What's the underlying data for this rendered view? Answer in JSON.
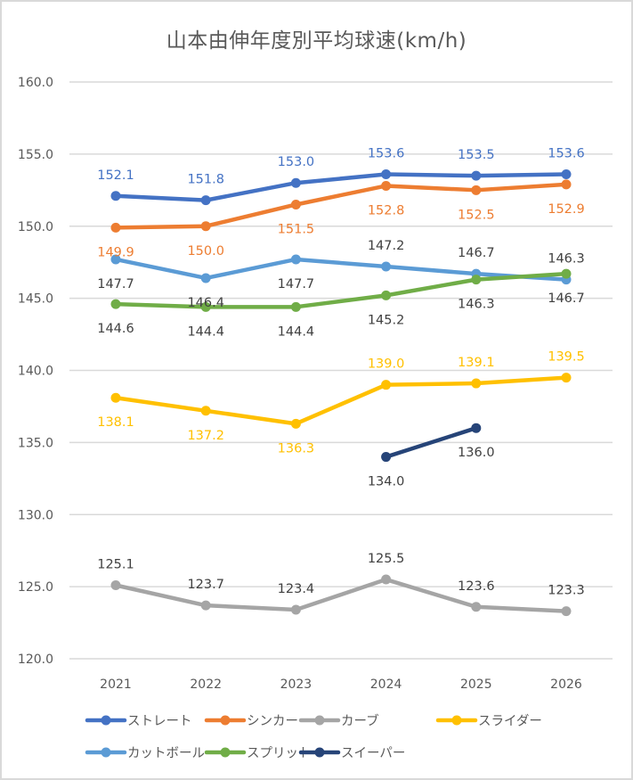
{
  "chart_data": {
    "type": "line",
    "title": "山本由伸年度別平均球速(km/h)",
    "xlabel": "",
    "ylabel": "",
    "categories": [
      "2021",
      "2022",
      "2023",
      "2024",
      "2025",
      "2026"
    ],
    "ylim": [
      120,
      160
    ],
    "yticks": [
      "120.0",
      "125.0",
      "130.0",
      "135.0",
      "140.0",
      "145.0",
      "150.0",
      "155.0",
      "160.0"
    ],
    "ytick_values": [
      120,
      125,
      130,
      135,
      140,
      145,
      150,
      155,
      160
    ],
    "grid": "horizontal",
    "legend_position": "bottom",
    "series": [
      {
        "name": "ストレート",
        "color": "#4472C4",
        "label_color": "#4472C4",
        "values": [
          152.1,
          151.8,
          153.0,
          153.6,
          153.5,
          153.6
        ],
        "labels": [
          "152.1",
          "151.8",
          "153.0",
          "153.6",
          "153.5",
          "153.6"
        ],
        "label_pos": [
          "above",
          "above",
          "above",
          "above",
          "above",
          "above"
        ]
      },
      {
        "name": "シンカー",
        "color": "#ED7D31",
        "label_color": "#ED7D31",
        "values": [
          149.9,
          150.0,
          151.5,
          152.8,
          152.5,
          152.9
        ],
        "labels": [
          "149.9",
          "150.0",
          "151.5",
          "152.8",
          "152.5",
          "152.9"
        ],
        "label_pos": [
          "below",
          "below",
          "below",
          "below",
          "below",
          "below"
        ]
      },
      {
        "name": "カーブ",
        "color": "#A5A5A5",
        "label_color": "#404040",
        "values": [
          125.1,
          123.7,
          123.4,
          125.5,
          123.6,
          123.3
        ],
        "labels": [
          "125.1",
          "123.7",
          "123.4",
          "125.5",
          "123.6",
          "123.3"
        ],
        "label_pos": [
          "above",
          "above",
          "above",
          "above",
          "above",
          "above"
        ]
      },
      {
        "name": "スライダー",
        "color": "#FFC000",
        "label_color": "#FFC000",
        "values": [
          138.1,
          137.2,
          136.3,
          139.0,
          139.1,
          139.5
        ],
        "labels": [
          "138.1",
          "137.2",
          "136.3",
          "139.0",
          "139.1",
          "139.5"
        ],
        "label_pos": [
          "below",
          "below",
          "below",
          "above",
          "above",
          "above"
        ]
      },
      {
        "name": "カットボール",
        "color": "#5B9BD5",
        "label_color": "#404040",
        "values": [
          147.7,
          146.4,
          147.7,
          147.2,
          146.7,
          146.3
        ],
        "labels": [
          "147.7",
          "146.4",
          "147.7",
          "147.2",
          "146.7",
          "146.3"
        ],
        "label_pos": [
          "below",
          "below",
          "below",
          "above",
          "above",
          "above"
        ]
      },
      {
        "name": "スプリット",
        "color": "#70AD47",
        "label_color": "#404040",
        "values": [
          144.6,
          144.4,
          144.4,
          145.2,
          146.3,
          146.7
        ],
        "labels": [
          "144.6",
          "144.4",
          "144.4",
          "145.2",
          "146.3",
          "146.7"
        ],
        "label_pos": [
          "below",
          "below",
          "below",
          "below",
          "below",
          "below"
        ]
      },
      {
        "name": "スイーパー",
        "color": "#264478",
        "label_color": "#404040",
        "values": [
          null,
          null,
          null,
          134.0,
          136.0,
          null
        ],
        "labels": [
          null,
          null,
          null,
          "134.0",
          "136.0",
          null
        ],
        "label_pos": [
          null,
          null,
          null,
          "below",
          "below",
          null
        ]
      }
    ]
  }
}
